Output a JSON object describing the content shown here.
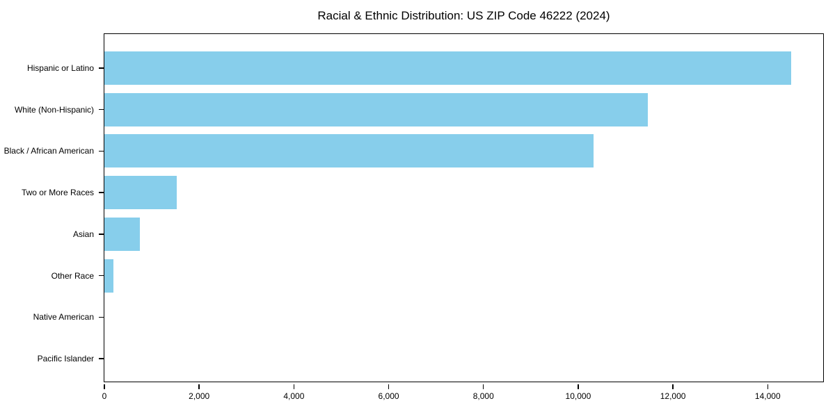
{
  "chart_data": {
    "type": "bar",
    "orientation": "horizontal",
    "title": "Racial & Ethnic Distribution: US ZIP Code 46222 (2024)",
    "categories": [
      "Hispanic or Latino",
      "White (Non-Hispanic)",
      "Black / African American",
      "Two or More Races",
      "Asian",
      "Other Race",
      "Native American",
      "Pacific Islander"
    ],
    "values": [
      14500,
      11470,
      10330,
      1530,
      750,
      190,
      0,
      0
    ],
    "xlabel": "",
    "ylabel": "",
    "xlim": [
      0,
      15200
    ],
    "xticks": [
      0,
      2000,
      4000,
      6000,
      8000,
      10000,
      12000,
      14000
    ],
    "xtick_labels": [
      "0",
      "2,000",
      "4,000",
      "6,000",
      "8,000",
      "10,000",
      "12,000",
      "14,000"
    ],
    "bar_color": "#87CEEB",
    "axis_color": "#000000",
    "background_color": "#ffffff",
    "grid": false,
    "legend": null
  }
}
